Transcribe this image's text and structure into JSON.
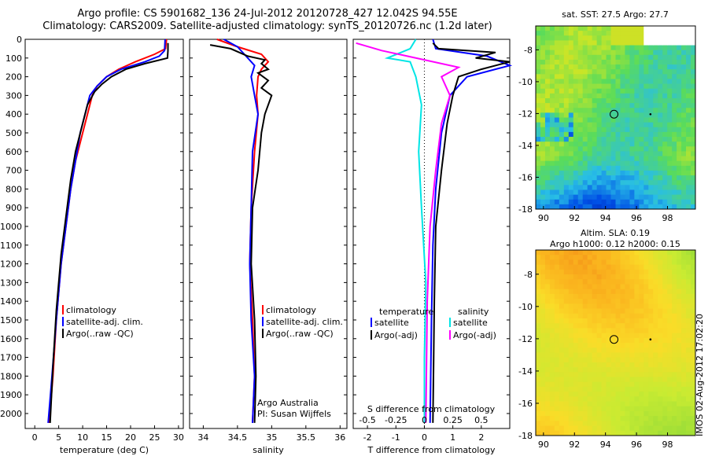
{
  "title_line1": "Argo profile: CS 5901682_136 24-Jul-2012 20120728_427 12.042S 94.55E",
  "title_line2": "Climatology: CARS2009. Satellite-adjusted climatology: synTS_20120726.nc (1.2d later)",
  "depth_ticks": [
    "0",
    "100",
    "200",
    "300",
    "400",
    "500",
    "600",
    "700",
    "800",
    "900",
    "1000",
    "1100",
    "1200",
    "1300",
    "1400",
    "1500",
    "1600",
    "1700",
    "1800",
    "1900",
    "2000"
  ],
  "side_stamp": "IMOS 02-Aug-2012 17:02:20",
  "colors": {
    "climatology": "#ff0000",
    "satellite": "#0000ff",
    "argo": "#000000",
    "sat_salinity": "#00e5e5",
    "argo_adj_salinity": "#ff00ff"
  },
  "chart_data": [
    {
      "id": "temperature",
      "type": "line",
      "xlabel": "temperature (deg C)",
      "ylabel": "",
      "xlim": [
        -2,
        31
      ],
      "ylim": [
        2080,
        0
      ],
      "xticks": [
        "0",
        "5",
        "10",
        "15",
        "20",
        "25",
        "30"
      ],
      "xtick_values": [
        0,
        5,
        10,
        15,
        20,
        25,
        30
      ],
      "legend": [
        {
          "name": "climatology",
          "color": "#ff0000"
        },
        {
          "name": "satellite-adj. clim.",
          "color": "#0000ff"
        },
        {
          "name": "Argo(..raw -QC)",
          "color": "#000000"
        }
      ],
      "series": [
        {
          "name": "climatology",
          "color": "#ff0000",
          "points": [
            [
              27.5,
              0
            ],
            [
              27.3,
              50
            ],
            [
              25,
              80
            ],
            [
              21,
              120
            ],
            [
              17.5,
              160
            ],
            [
              15,
              200
            ],
            [
              13,
              250
            ],
            [
              12,
              300
            ],
            [
              11,
              400
            ],
            [
              10,
              500
            ],
            [
              8.5,
              650
            ],
            [
              7.5,
              800
            ],
            [
              6.5,
              1000
            ],
            [
              5.5,
              1200
            ],
            [
              4.5,
              1500
            ],
            [
              3.8,
              1800
            ],
            [
              3,
              2050
            ]
          ]
        },
        {
          "name": "satellite-adj. clim.",
          "color": "#0000ff",
          "points": [
            [
              27.2,
              0
            ],
            [
              27.1,
              60
            ],
            [
              26,
              90
            ],
            [
              23,
              120
            ],
            [
              18,
              160
            ],
            [
              15,
              200
            ],
            [
              13,
              250
            ],
            [
              11.5,
              300
            ],
            [
              10.5,
              400
            ],
            [
              9.5,
              500
            ],
            [
              8.5,
              650
            ],
            [
              7.5,
              800
            ],
            [
              6.5,
              1000
            ],
            [
              5.5,
              1200
            ],
            [
              4.5,
              1500
            ],
            [
              3.6,
              1800
            ],
            [
              2.8,
              2050
            ]
          ]
        },
        {
          "name": "Argo(..raw -QC)",
          "color": "#000000",
          "points": [
            [
              27.8,
              20
            ],
            [
              27.8,
              60
            ],
            [
              27.7,
              100
            ],
            [
              23,
              130
            ],
            [
              19,
              160
            ],
            [
              16,
              200
            ],
            [
              14,
              240
            ],
            [
              12.5,
              280
            ],
            [
              11,
              350
            ],
            [
              10,
              450
            ],
            [
              8.5,
              600
            ],
            [
              7.5,
              750
            ],
            [
              6.5,
              950
            ],
            [
              5.5,
              1150
            ],
            [
              4.5,
              1450
            ],
            [
              3.8,
              1750
            ],
            [
              3.2,
              2050
            ]
          ]
        }
      ]
    },
    {
      "id": "salinity",
      "type": "line",
      "xlabel": "salinity",
      "ylabel": "",
      "xlim": [
        33.8,
        36.1
      ],
      "ylim": [
        2080,
        0
      ],
      "xticks": [
        "34",
        "34.5",
        "35",
        "35.5",
        "36"
      ],
      "xtick_values": [
        34,
        34.5,
        35,
        35.5,
        36
      ],
      "legend": [
        {
          "name": "climatology",
          "color": "#ff0000"
        },
        {
          "name": "satellite-adj. clim.",
          "color": "#0000ff"
        },
        {
          "name": "Argo(..raw -QC)",
          "color": "#000000"
        }
      ],
      "annotations": [
        "Argo Australia",
        "PI: Susan Wijffels"
      ],
      "series": [
        {
          "name": "climatology",
          "color": "#ff0000",
          "points": [
            [
              34.2,
              0
            ],
            [
              34.5,
              40
            ],
            [
              34.85,
              80
            ],
            [
              34.95,
              120
            ],
            [
              34.85,
              160
            ],
            [
              34.8,
              200
            ],
            [
              34.78,
              300
            ],
            [
              34.8,
              400
            ],
            [
              34.75,
              600
            ],
            [
              34.7,
              900
            ],
            [
              34.68,
              1200
            ],
            [
              34.72,
              1500
            ],
            [
              34.75,
              1800
            ],
            [
              34.72,
              2050
            ]
          ]
        },
        {
          "name": "satellite-adj. clim.",
          "color": "#0000ff",
          "points": [
            [
              34.3,
              0
            ],
            [
              34.5,
              40
            ],
            [
              34.6,
              80
            ],
            [
              34.75,
              140
            ],
            [
              34.7,
              200
            ],
            [
              34.75,
              300
            ],
            [
              34.8,
              400
            ],
            [
              34.72,
              600
            ],
            [
              34.7,
              900
            ],
            [
              34.68,
              1200
            ],
            [
              34.7,
              1500
            ],
            [
              34.75,
              1800
            ],
            [
              34.72,
              2050
            ]
          ]
        },
        {
          "name": "Argo(..raw -QC)",
          "color": "#000000",
          "points": [
            [
              34.1,
              30
            ],
            [
              34.4,
              50
            ],
            [
              34.65,
              90
            ],
            [
              34.9,
              110
            ],
            [
              34.85,
              130
            ],
            [
              34.95,
              160
            ],
            [
              34.8,
              180
            ],
            [
              34.95,
              220
            ],
            [
              34.85,
              260
            ],
            [
              35,
              300
            ],
            [
              34.9,
              400
            ],
            [
              34.85,
              500
            ],
            [
              34.8,
              700
            ],
            [
              34.72,
              900
            ],
            [
              34.7,
              1200
            ],
            [
              34.75,
              1500
            ],
            [
              34.77,
              1800
            ],
            [
              34.75,
              2050
            ]
          ]
        }
      ]
    },
    {
      "id": "differences",
      "type": "line",
      "xlabel": "T difference from climatology",
      "xlabel_top": "S difference from climatology",
      "ylabel": "",
      "xlim": [
        -2.5,
        3
      ],
      "ylim": [
        2080,
        0
      ],
      "xticks": [
        "-2",
        "-1",
        "0",
        "1",
        "2"
      ],
      "xtick_values": [
        -2,
        -1,
        0,
        1,
        2
      ],
      "xticks_top": [
        "-0.5",
        "-0.25",
        "0",
        "0.25",
        "0.5"
      ],
      "xtick_top_values": [
        -2,
        -1,
        0,
        1,
        2
      ],
      "legend_titles": [
        "temperature",
        "salinity"
      ],
      "legend": [
        {
          "name": "satellite",
          "color": "#0000ff"
        },
        {
          "name": "Argo(-adj)",
          "color": "#000000"
        },
        {
          "name": "satellite",
          "color": "#00e5e5"
        },
        {
          "name": "Argo(-adj)",
          "color": "#ff00ff"
        }
      ],
      "series": [
        {
          "name": "T satellite",
          "color": "#0000ff",
          "points": [
            [
              0.3,
              0
            ],
            [
              0.4,
              50
            ],
            [
              2.2,
              90
            ],
            [
              3,
              140
            ],
            [
              1.5,
              200
            ],
            [
              0.9,
              300
            ],
            [
              0.6,
              500
            ],
            [
              0.4,
              800
            ],
            [
              0.3,
              1100
            ],
            [
              0.25,
              1500
            ],
            [
              0.2,
              2050
            ]
          ]
        },
        {
          "name": "T Argo(-adj)",
          "color": "#000000",
          "points": [
            [
              0.3,
              20
            ],
            [
              0.5,
              50
            ],
            [
              2.5,
              70
            ],
            [
              1.8,
              100
            ],
            [
              3,
              120
            ],
            [
              2,
              160
            ],
            [
              1.2,
              200
            ],
            [
              1,
              300
            ],
            [
              0.8,
              450
            ],
            [
              0.6,
              700
            ],
            [
              0.4,
              1000
            ],
            [
              0.35,
              1400
            ],
            [
              0.3,
              2050
            ]
          ]
        },
        {
          "name": "S satellite",
          "color": "#00e5e5",
          "points": [
            [
              -0.3,
              0
            ],
            [
              -0.5,
              50
            ],
            [
              -1.3,
              100
            ],
            [
              -0.5,
              120
            ],
            [
              -0.3,
              200
            ],
            [
              -0.1,
              350
            ],
            [
              -0.2,
              600
            ],
            [
              -0.1,
              900
            ],
            [
              0.05,
              1300
            ],
            [
              0,
              1700
            ],
            [
              0,
              2050
            ]
          ]
        },
        {
          "name": "S Argo(-adj)",
          "color": "#ff00ff",
          "points": [
            [
              -2.4,
              20
            ],
            [
              -1.5,
              60
            ],
            [
              -0.6,
              90
            ],
            [
              1.2,
              150
            ],
            [
              0.6,
              200
            ],
            [
              0.9,
              300
            ],
            [
              0.6,
              450
            ],
            [
              0.4,
              700
            ],
            [
              0.2,
              1000
            ],
            [
              0.1,
              1400
            ],
            [
              0.05,
              2050
            ]
          ]
        }
      ]
    },
    {
      "id": "sst_map",
      "type": "heatmap",
      "title": "sat. SST: 27.5  Argo: 27.7",
      "xticks": [
        "90",
        "92",
        "94",
        "96",
        "98"
      ],
      "yticks": [
        "-8",
        "-10",
        "-12",
        "-14",
        "-16",
        "-18"
      ],
      "xlim": [
        89.5,
        99.8
      ],
      "ylim": [
        -18,
        -6.5
      ],
      "argo_position": [
        94.55,
        -12.04
      ]
    },
    {
      "id": "sla_map",
      "type": "heatmap",
      "title": "Altim. SLA: 0.19",
      "subtitle": "Argo h1000: 0.12  h2000: 0.15",
      "xticks": [
        "90",
        "92",
        "94",
        "96",
        "98"
      ],
      "yticks": [
        "-8",
        "-10",
        "-12",
        "-14",
        "-16",
        "-18"
      ],
      "xlim": [
        89.5,
        99.8
      ],
      "ylim": [
        -18,
        -6.5
      ],
      "argo_position": [
        94.55,
        -12.04
      ]
    }
  ]
}
